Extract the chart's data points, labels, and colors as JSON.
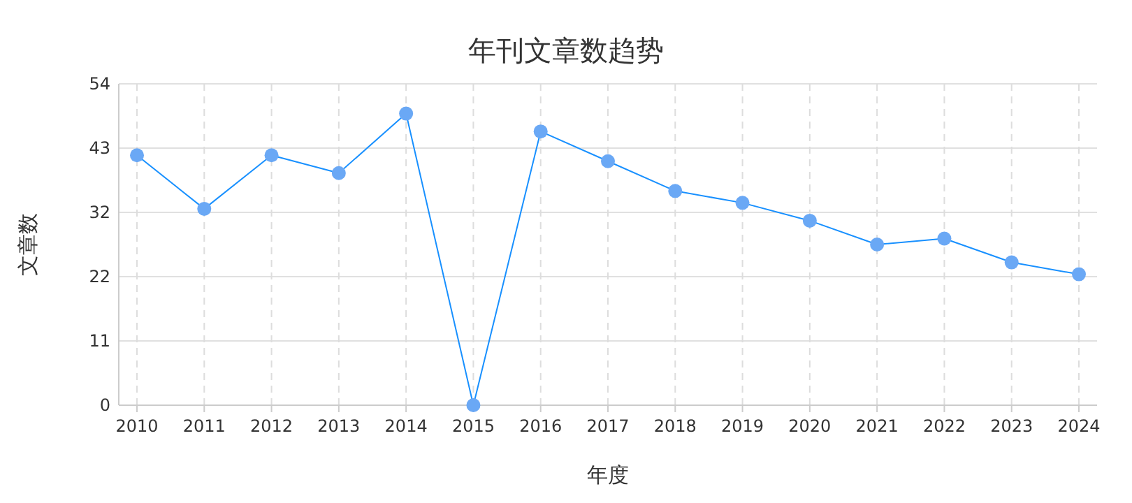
{
  "chart_data": {
    "type": "line",
    "title": "年刊文章数趋势",
    "xlabel": "年度",
    "ylabel": "文章数",
    "categories": [
      "2010",
      "2011",
      "2012",
      "2013",
      "2014",
      "2015",
      "2016",
      "2017",
      "2018",
      "2019",
      "2020",
      "2021",
      "2022",
      "2023",
      "2024"
    ],
    "series": [
      {
        "color": "#1890ff",
        "values": [
          42,
          33,
          42,
          39,
          49,
          0,
          46,
          41,
          36,
          34,
          31,
          27,
          28,
          24,
          22
        ]
      }
    ],
    "ylim": [
      0,
      54
    ],
    "yticks": [
      0,
      {
        "value": 10.8,
        "label": "11"
      },
      {
        "value": 21.6,
        "label": "22"
      },
      {
        "value": 32.4,
        "label": "32"
      },
      {
        "value": 43.2,
        "label": "43"
      },
      54
    ],
    "grid": true,
    "marker": "circle"
  }
}
